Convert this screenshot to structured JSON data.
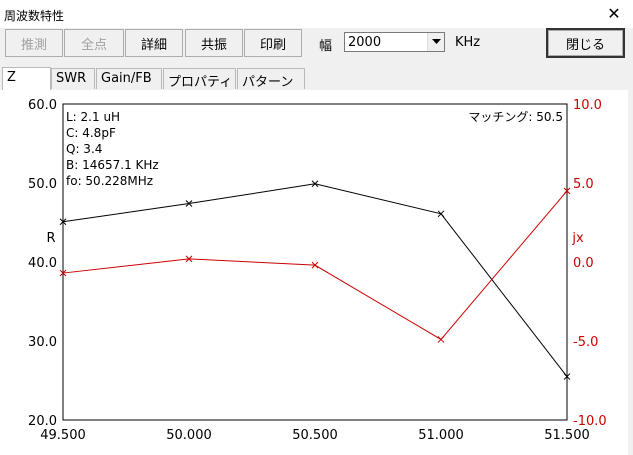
{
  "window": {
    "title": "周波数特性",
    "close_symbol": "✕"
  },
  "toolbar": {
    "estimate_label": "推測",
    "all_points_label": "全点",
    "detail_label": "詳細",
    "resonance_label": "共振",
    "print_label": "印刷",
    "width_label": "幅",
    "width_value": "2000",
    "width_unit": "KHz",
    "close_label": "閉じる"
  },
  "tabs": [
    {
      "label": "Z"
    },
    {
      "label": "SWR"
    },
    {
      "label": "Gain/FB"
    },
    {
      "label": "プロパティ"
    },
    {
      "label": "パターン"
    }
  ],
  "chart_data": {
    "type": "line",
    "x": [
      49.5,
      50.0,
      50.5,
      51.0,
      51.5
    ],
    "x_tick_labels": [
      "49.500",
      "50.000",
      "50.500",
      "51.000",
      "51.500"
    ],
    "xlim": [
      49.5,
      51.5
    ],
    "series": [
      {
        "name": "R",
        "axis": "left",
        "color": "#000000",
        "values": [
          45.1,
          47.4,
          49.9,
          46.1,
          25.5
        ]
      },
      {
        "name": "jx",
        "axis": "right",
        "color": "#cc0000",
        "values": [
          -0.7,
          0.2,
          -0.2,
          -4.9,
          4.5
        ]
      }
    ],
    "ylim_left": [
      20,
      60
    ],
    "ylim_right": [
      -10,
      10
    ],
    "left_ticks": [
      "20.0",
      "30.0",
      "40.0",
      "50.0",
      "60.0"
    ],
    "right_ticks": [
      "-10.0",
      "-5.0",
      "0.0",
      "5.0",
      "10.0"
    ],
    "ylabel_left": "R",
    "ylabel_right": "jx",
    "info": [
      "L: 2.1 uH",
      "C: 4.8pF",
      "Q: 3.4",
      "B: 14657.1 KHz",
      "fo: 50.228MHz"
    ],
    "matching": "マッチング: 50.5",
    "grid": true
  }
}
